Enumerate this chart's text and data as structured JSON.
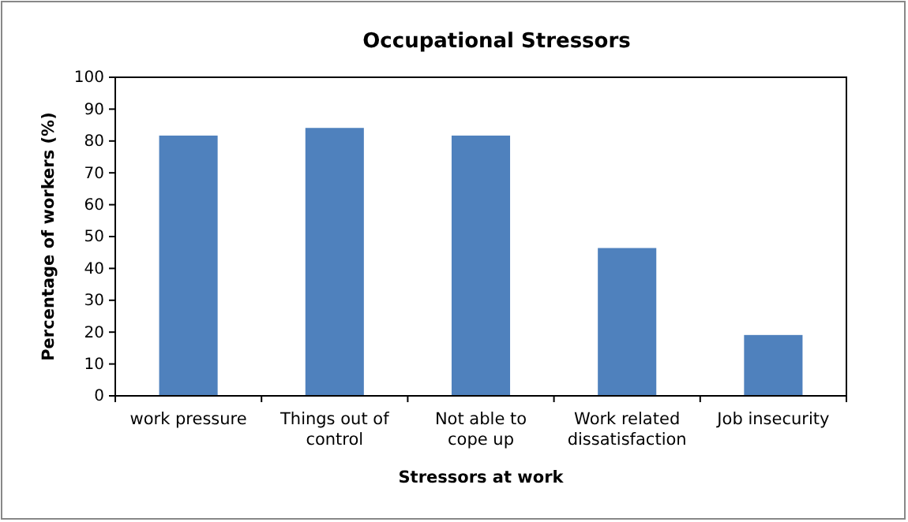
{
  "chart_data": {
    "type": "bar",
    "title": "Occupational Stressors",
    "xlabel": "Stressors at work",
    "ylabel": "Percentage of workers (%)",
    "categories": [
      "work pressure",
      "Things out of control",
      "Not able to cope up",
      "Work related dissatisfaction",
      "Job insecurity"
    ],
    "values": [
      81.7,
      84.1,
      81.7,
      46.4,
      19.1
    ],
    "color": "#4f81bd",
    "ylim": [
      0,
      100
    ],
    "yticks": [
      0,
      10,
      20,
      30,
      40,
      50,
      60,
      70,
      80,
      90,
      100
    ]
  }
}
